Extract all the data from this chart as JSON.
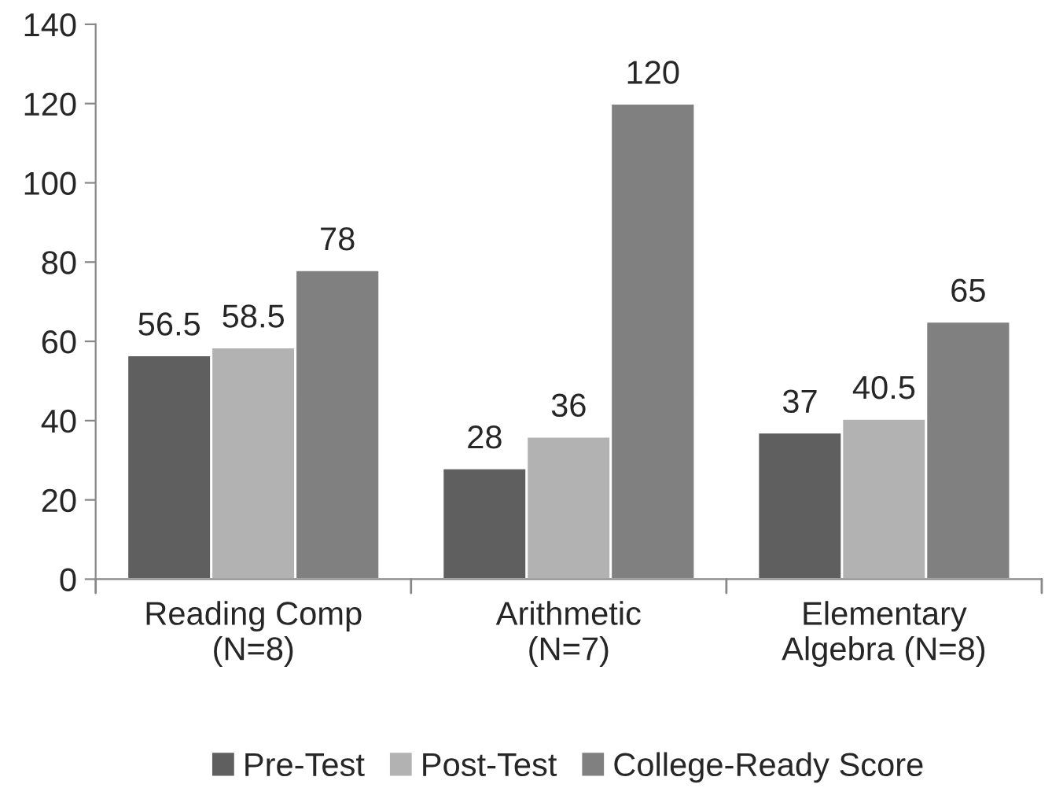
{
  "chart_data": {
    "type": "bar",
    "categories": [
      "Reading Comp\n(N=8)",
      "Arithmetic\n(N=7)",
      "Elementary\nAlgebra (N=8)"
    ],
    "series": [
      {
        "name": "Pre-Test",
        "color": "#5f5f5f",
        "values": [
          56.5,
          28,
          37
        ]
      },
      {
        "name": "Post-Test",
        "color": "#b2b2b2",
        "values": [
          58.5,
          36,
          40.5
        ]
      },
      {
        "name": "College-Ready Score",
        "color": "#808080",
        "values": [
          78,
          120,
          65
        ]
      }
    ],
    "ylim": [
      0,
      140
    ],
    "yticks": [
      0,
      20,
      40,
      60,
      80,
      100,
      120,
      140
    ],
    "grid": false,
    "legend": "bottom",
    "data_labels": true
  }
}
